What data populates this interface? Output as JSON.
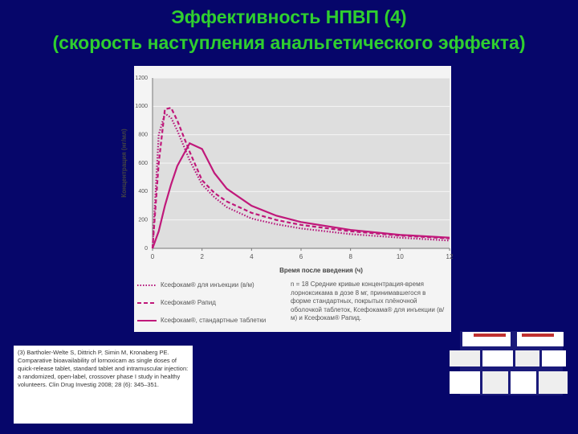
{
  "header": {
    "title": "Эффективность НПВП (4)",
    "subtitle": "(скорость наступления анальгетического эффекта)"
  },
  "chart_data": {
    "type": "line",
    "xlabel": "Время после введения (ч)",
    "ylabel": "Концентрация (нг/мл)",
    "x": [
      0,
      0.25,
      0.5,
      0.75,
      1,
      1.5,
      2,
      2.5,
      3,
      4,
      5,
      6,
      8,
      10,
      12
    ],
    "series": [
      {
        "name": "Ксефокам® для инъекции (в/м)",
        "color": "#b5157a",
        "style": "dotted",
        "values": [
          0,
          800,
          950,
          920,
          830,
          620,
          450,
          360,
          290,
          210,
          170,
          140,
          100,
          75,
          55
        ]
      },
      {
        "name": "Ксефокам® Рапид",
        "color": "#c0187a",
        "style": "dashed",
        "values": [
          0,
          600,
          980,
          990,
          900,
          680,
          480,
          390,
          330,
          250,
          200,
          165,
          120,
          90,
          70
        ]
      },
      {
        "name": "Ксефокам®, стандартные таблетки",
        "color": "#c0187a",
        "style": "solid",
        "values": [
          0,
          120,
          300,
          450,
          580,
          740,
          700,
          530,
          420,
          300,
          230,
          185,
          130,
          95,
          75
        ]
      }
    ],
    "xlim": [
      0,
      12
    ],
    "xticks": [
      0,
      2,
      4,
      6,
      8,
      10,
      12
    ],
    "ylim": [
      0,
      1200
    ],
    "yticks": [
      0,
      200,
      400,
      600,
      800,
      1000,
      1200
    ],
    "grid": true,
    "note": "n = 18 Средние кривые концентрация-время лорноксикама в дозе 8 мг, принимавшегося в форме стандартных, покрытых плёночной оболочкой таблеток, Ксефокама® для инъекции (в/м) и Ксефокам® Рапид."
  },
  "reference": "(3) Bartholer-Welte S, Dittrich P, Simin M, Kronaberg PE. Comparative bioavailability of lornoxicam as single doses of quick-release tablet, standard tablet and intramuscular injection: a randomized, open-label, crossover phase I study in healthy volunteers. Clin Drug Investig 2008; 28 (6): 345–351."
}
